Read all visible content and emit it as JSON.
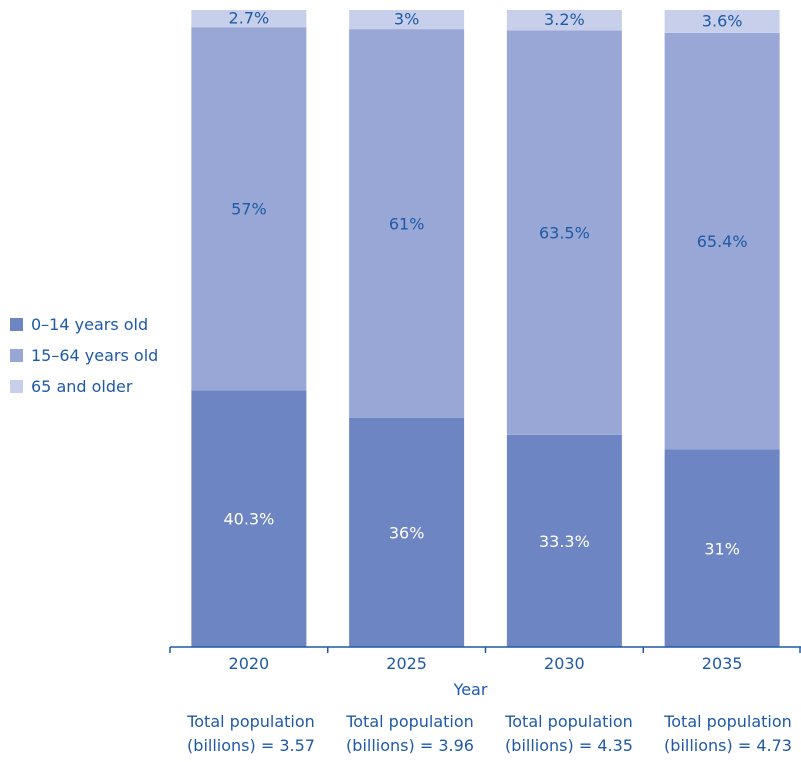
{
  "chart_data": {
    "type": "bar",
    "stacked": true,
    "categories": [
      "2020",
      "2025",
      "2030",
      "2035"
    ],
    "series": [
      {
        "name": "0–14 years old",
        "values": [
          40.3,
          36,
          33.3,
          31
        ],
        "labels": [
          "40.3%",
          "36%",
          "33.3%",
          "31%"
        ],
        "color": "#6d85c3",
        "label_color": "#ffffff"
      },
      {
        "name": "15–64 years old",
        "values": [
          57,
          61,
          63.5,
          65.4
        ],
        "labels": [
          "57%",
          "61%",
          "63.5%",
          "65.4%"
        ],
        "color": "#98a7d6",
        "label_color": "#1f5aa6"
      },
      {
        "name": "65 and older",
        "values": [
          2.7,
          3,
          3.2,
          3.6
        ],
        "labels": [
          "2.7%",
          "3%",
          "3.2%",
          "3.6%"
        ],
        "color": "#c7cfeb",
        "label_color": "#1f5aa6"
      }
    ],
    "ylim": [
      0,
      100
    ],
    "xlabel": "Year",
    "ylabel": "",
    "legend_position": "left",
    "grid": false,
    "footnotes": [
      "Total population (billions) = 3.57",
      "Total population (billions) = 3.96",
      "Total population (billions) = 4.35",
      "Total population (billions) = 4.73"
    ]
  },
  "colors": {
    "text": "#1f5aa6",
    "axis": "#1f5aa6"
  }
}
